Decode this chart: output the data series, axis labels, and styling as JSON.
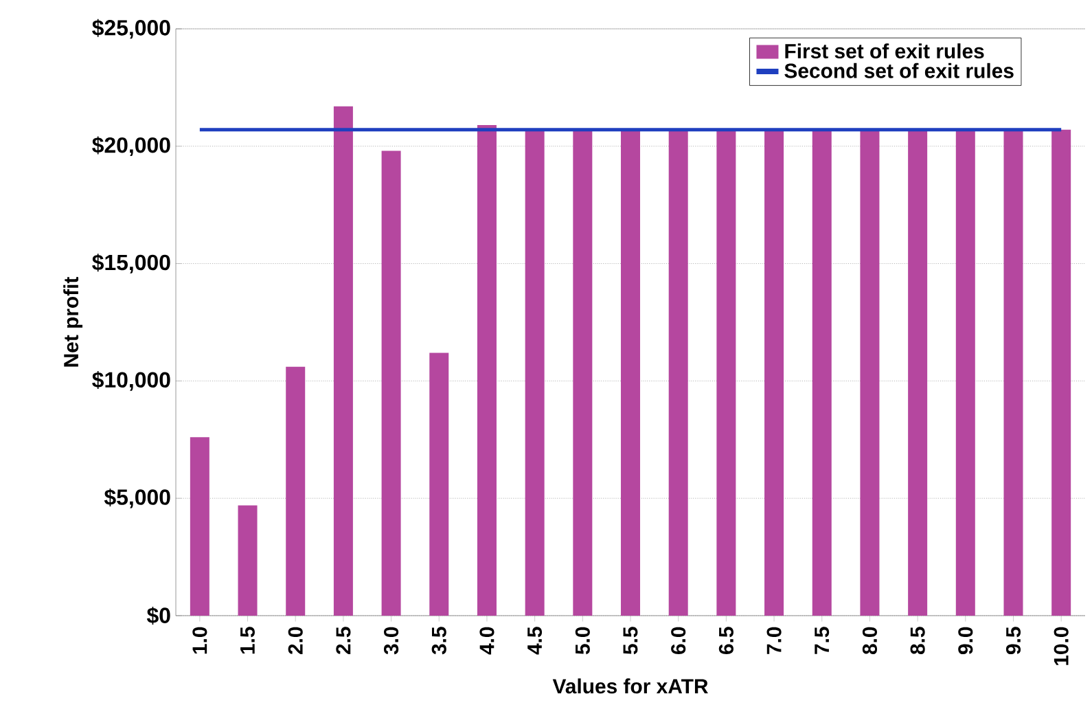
{
  "chart_data": {
    "type": "bar",
    "xlabel": "Values for xATR",
    "ylabel": "Net profit",
    "categories": [
      "1.0",
      "1.5",
      "2.0",
      "2.5",
      "3.0",
      "3.5",
      "4.0",
      "4.5",
      "5.0",
      "5.5",
      "6.0",
      "6.5",
      "7.0",
      "7.5",
      "8.0",
      "8.5",
      "9.0",
      "9.5",
      "10.0"
    ],
    "series": [
      {
        "name": "First set of exit rules",
        "type": "bar",
        "color": "#b5479f",
        "values": [
          7600,
          4700,
          10600,
          21700,
          19800,
          11200,
          20900,
          20700,
          20700,
          20700,
          20700,
          20700,
          20700,
          20700,
          20700,
          20700,
          20700,
          20700,
          20700
        ]
      },
      {
        "name": "Second set of exit rules",
        "type": "line",
        "color": "#1f3fbf",
        "values": [
          20700,
          20700,
          20700,
          20700,
          20700,
          20700,
          20700,
          20700,
          20700,
          20700,
          20700,
          20700,
          20700,
          20700,
          20700,
          20700,
          20700,
          20700,
          20700
        ]
      }
    ],
    "ylim": [
      0,
      25000
    ],
    "yticks": [
      {
        "value": 0,
        "label": "$0"
      },
      {
        "value": 5000,
        "label": "$5,000"
      },
      {
        "value": 10000,
        "label": "$10,000"
      },
      {
        "value": 15000,
        "label": "$15,000"
      },
      {
        "value": 20000,
        "label": "$20,000"
      },
      {
        "value": 25000,
        "label": "$25,000"
      }
    ],
    "grid": "y",
    "legend": "top right"
  }
}
